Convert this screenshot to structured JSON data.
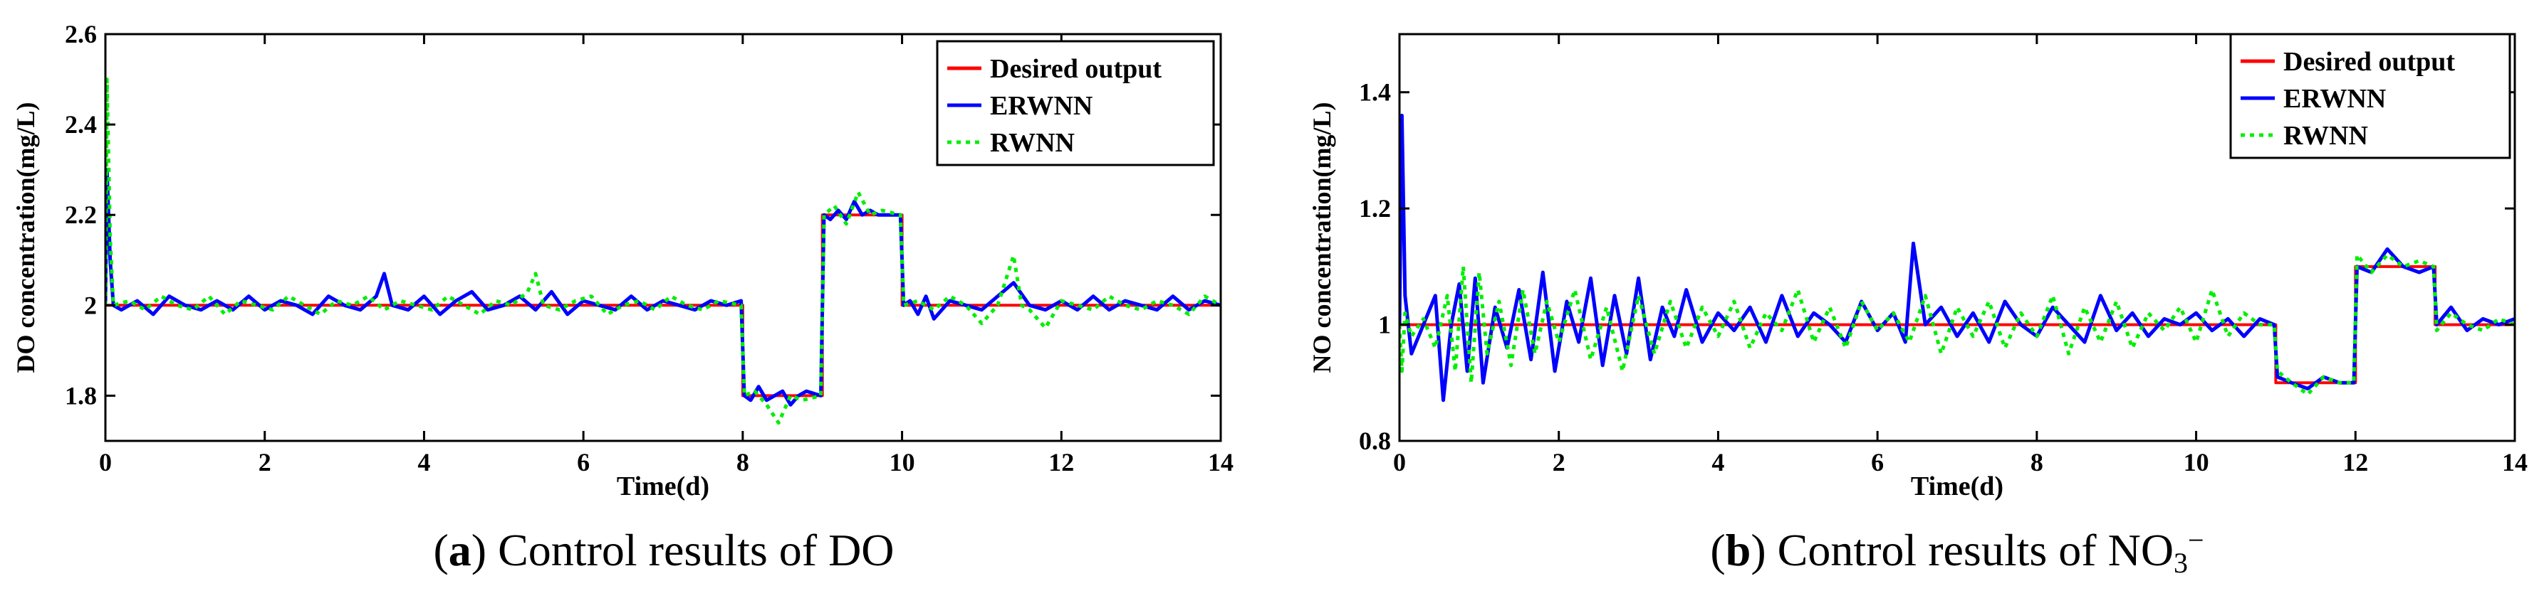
{
  "chart_data": [
    {
      "type": "line",
      "xlabel": "Time(d)",
      "ylabel": "DO concentration(mg/L)",
      "xlim": [
        0,
        14
      ],
      "ylim": [
        1.7,
        2.6
      ],
      "xticks": [
        0,
        2,
        4,
        6,
        8,
        10,
        12,
        14
      ],
      "xtick_labels": [
        "0",
        "2",
        "4",
        "6",
        "8",
        "10",
        "12",
        "14"
      ],
      "yticks": [
        1.8,
        2.0,
        2.2,
        2.4,
        2.6
      ],
      "ytick_labels": [
        "1.8",
        "2",
        "2.2",
        "2.4",
        "2.6"
      ],
      "grid": false,
      "legend": "top-right",
      "caption": {
        "letter": "a",
        "text": " Control results of DO"
      },
      "series": [
        {
          "name": "Desired output",
          "color": "#ff0000",
          "style": "solid",
          "x": [
            0,
            8,
            8,
            9,
            9,
            10,
            10,
            14
          ],
          "y": [
            2.0,
            2.0,
            1.8,
            1.8,
            2.2,
            2.2,
            2.0,
            2.0
          ]
        },
        {
          "name": "ERWNN",
          "color": "#0000ff",
          "style": "solid",
          "x": [
            0,
            0.02,
            0.06,
            0.1,
            0.2,
            0.4,
            0.6,
            0.8,
            1.0,
            1.2,
            1.4,
            1.6,
            1.8,
            2.0,
            2.2,
            2.4,
            2.6,
            2.8,
            3.0,
            3.2,
            3.4,
            3.5,
            3.6,
            3.8,
            4.0,
            4.2,
            4.4,
            4.6,
            4.8,
            5.0,
            5.2,
            5.4,
            5.6,
            5.8,
            6.0,
            6.2,
            6.4,
            6.6,
            6.8,
            7.0,
            7.2,
            7.4,
            7.6,
            7.8,
            7.98,
            8.02,
            8.1,
            8.2,
            8.3,
            8.4,
            8.5,
            8.6,
            8.7,
            8.8,
            8.98,
            9.02,
            9.1,
            9.2,
            9.3,
            9.4,
            9.5,
            9.6,
            9.7,
            9.8,
            9.98,
            10.02,
            10.1,
            10.2,
            10.3,
            10.4,
            10.6,
            10.8,
            11.0,
            11.2,
            11.4,
            11.6,
            11.8,
            12.0,
            12.2,
            12.4,
            12.6,
            12.8,
            13.0,
            13.2,
            13.4,
            13.6,
            13.8,
            14.0
          ],
          "y": [
            2.0,
            2.3,
            2.1,
            2.0,
            1.99,
            2.01,
            1.98,
            2.02,
            2.0,
            1.99,
            2.01,
            1.99,
            2.02,
            1.99,
            2.01,
            2.0,
            1.98,
            2.02,
            2.0,
            1.99,
            2.02,
            2.07,
            2.0,
            1.99,
            2.02,
            1.98,
            2.01,
            2.03,
            1.99,
            2.0,
            2.02,
            1.99,
            2.03,
            1.98,
            2.01,
            2.0,
            1.99,
            2.02,
            1.99,
            2.01,
            2.0,
            1.99,
            2.01,
            2.0,
            2.01,
            1.8,
            1.79,
            1.82,
            1.79,
            1.8,
            1.81,
            1.78,
            1.8,
            1.81,
            1.8,
            2.2,
            2.19,
            2.21,
            2.19,
            2.23,
            2.2,
            2.21,
            2.2,
            2.2,
            2.2,
            2.0,
            2.01,
            1.98,
            2.02,
            1.97,
            2.01,
            2.0,
            1.99,
            2.02,
            2.05,
            2.0,
            1.99,
            2.01,
            1.99,
            2.02,
            1.99,
            2.01,
            2.0,
            1.99,
            2.02,
            1.99,
            2.01,
            2.0
          ]
        },
        {
          "name": "RWNN",
          "color": "#00ee00",
          "style": "dotted",
          "x": [
            0,
            0.02,
            0.06,
            0.1,
            0.3,
            0.5,
            0.7,
            0.9,
            1.1,
            1.3,
            1.5,
            1.7,
            1.9,
            2.1,
            2.3,
            2.5,
            2.7,
            2.9,
            3.1,
            3.3,
            3.5,
            3.7,
            3.9,
            4.1,
            4.3,
            4.5,
            4.7,
            4.9,
            5.1,
            5.3,
            5.4,
            5.5,
            5.7,
            5.9,
            6.1,
            6.3,
            6.5,
            6.7,
            6.9,
            7.1,
            7.3,
            7.5,
            7.7,
            7.98,
            8.02,
            8.15,
            8.3,
            8.45,
            8.6,
            8.75,
            8.98,
            9.02,
            9.15,
            9.3,
            9.45,
            9.6,
            9.75,
            9.98,
            10.02,
            10.2,
            10.4,
            10.6,
            10.8,
            11.0,
            11.2,
            11.4,
            11.5,
            11.6,
            11.8,
            12.0,
            12.2,
            12.4,
            12.6,
            12.8,
            13.0,
            13.2,
            13.4,
            13.6,
            13.8,
            14.0
          ],
          "y": [
            2.0,
            2.5,
            2.15,
            2.0,
            2.01,
            1.99,
            2.02,
            2.0,
            1.99,
            2.02,
            1.98,
            2.01,
            2.0,
            1.99,
            2.02,
            2.0,
            1.98,
            2.01,
            2.0,
            2.02,
            1.99,
            2.01,
            2.0,
            1.99,
            2.02,
            2.0,
            1.98,
            2.01,
            2.0,
            2.03,
            2.07,
            2.0,
            1.99,
            2.01,
            2.02,
            1.98,
            2.0,
            2.01,
            1.99,
            2.02,
            2.0,
            1.99,
            2.01,
            2.0,
            1.8,
            1.81,
            1.78,
            1.74,
            1.8,
            1.79,
            1.8,
            2.2,
            2.22,
            2.18,
            2.25,
            2.2,
            2.21,
            2.2,
            2.0,
            2.01,
            1.99,
            2.02,
            2.0,
            1.96,
            2.0,
            2.11,
            2.0,
            1.99,
            1.95,
            2.01,
            2.0,
            1.99,
            2.02,
            2.0,
            1.99,
            2.01,
            2.0,
            1.98,
            2.02,
            2.0
          ]
        }
      ]
    },
    {
      "type": "line",
      "xlabel": "Time(d)",
      "ylabel": "NO concentration(mg/L)",
      "xlim": [
        0,
        14
      ],
      "ylim": [
        0.8,
        1.5
      ],
      "xticks": [
        0,
        2,
        4,
        6,
        8,
        10,
        12,
        14
      ],
      "xtick_labels": [
        "0",
        "2",
        "4",
        "6",
        "8",
        "10",
        "12",
        "14"
      ],
      "yticks": [
        0.8,
        1.0,
        1.2,
        1.4
      ],
      "ytick_labels": [
        "0.8",
        "1",
        "1.2",
        "1.4"
      ],
      "grid": false,
      "legend": "top-right",
      "caption": {
        "letter": "b",
        "text": " Control results of NO",
        "sub": "3",
        "sup": "−"
      },
      "series": [
        {
          "name": "Desired output",
          "color": "#ff0000",
          "style": "solid",
          "x": [
            0,
            11,
            11,
            12,
            12,
            13,
            13,
            14
          ],
          "y": [
            1.0,
            1.0,
            0.9,
            0.9,
            1.1,
            1.1,
            1.0,
            1.0
          ]
        },
        {
          "name": "ERWNN",
          "color": "#0000ff",
          "style": "solid",
          "x": [
            0,
            0.03,
            0.07,
            0.15,
            0.3,
            0.45,
            0.55,
            0.65,
            0.75,
            0.85,
            0.95,
            1.05,
            1.2,
            1.35,
            1.5,
            1.65,
            1.8,
            1.95,
            2.1,
            2.25,
            2.4,
            2.55,
            2.7,
            2.85,
            3.0,
            3.15,
            3.3,
            3.45,
            3.6,
            3.8,
            4.0,
            4.2,
            4.4,
            4.6,
            4.8,
            5.0,
            5.2,
            5.4,
            5.6,
            5.8,
            6.0,
            6.2,
            6.35,
            6.45,
            6.6,
            6.8,
            7.0,
            7.2,
            7.4,
            7.6,
            7.8,
            8.0,
            8.2,
            8.4,
            8.6,
            8.8,
            9.0,
            9.2,
            9.4,
            9.6,
            9.8,
            10.0,
            10.2,
            10.4,
            10.6,
            10.8,
            10.98,
            11.02,
            11.2,
            11.4,
            11.6,
            11.8,
            11.98,
            12.02,
            12.2,
            12.4,
            12.6,
            12.8,
            12.98,
            13.02,
            13.2,
            13.4,
            13.6,
            13.8,
            14.0
          ],
          "y": [
            1.0,
            1.36,
            1.05,
            0.95,
            1.0,
            1.05,
            0.87,
            1.0,
            1.07,
            0.92,
            1.08,
            0.9,
            1.03,
            0.96,
            1.06,
            0.94,
            1.09,
            0.92,
            1.04,
            0.97,
            1.08,
            0.93,
            1.05,
            0.95,
            1.08,
            0.94,
            1.03,
            0.98,
            1.06,
            0.97,
            1.02,
            0.99,
            1.03,
            0.97,
            1.05,
            0.98,
            1.02,
            1.0,
            0.97,
            1.04,
            0.99,
            1.02,
            0.97,
            1.14,
            1.0,
            1.03,
            0.98,
            1.02,
            0.97,
            1.04,
            1.0,
            0.98,
            1.03,
            1.0,
            0.97,
            1.05,
            0.99,
            1.02,
            0.98,
            1.01,
            1.0,
            1.02,
            0.99,
            1.01,
            0.98,
            1.01,
            1.0,
            0.91,
            0.9,
            0.89,
            0.91,
            0.9,
            0.9,
            1.1,
            1.09,
            1.13,
            1.1,
            1.09,
            1.1,
            1.0,
            1.03,
            0.99,
            1.01,
            1.0,
            1.01
          ]
        },
        {
          "name": "RWNN",
          "color": "#00ee00",
          "style": "dotted",
          "x": [
            0,
            0.03,
            0.07,
            0.15,
            0.3,
            0.45,
            0.6,
            0.7,
            0.8,
            0.9,
            1.0,
            1.1,
            1.25,
            1.4,
            1.55,
            1.7,
            1.85,
            2.0,
            2.2,
            2.4,
            2.6,
            2.8,
            3.0,
            3.2,
            3.4,
            3.6,
            3.8,
            4.0,
            4.2,
            4.4,
            4.6,
            4.8,
            5.0,
            5.2,
            5.4,
            5.6,
            5.8,
            6.0,
            6.2,
            6.4,
            6.6,
            6.8,
            7.0,
            7.2,
            7.4,
            7.6,
            7.8,
            8.0,
            8.2,
            8.4,
            8.6,
            8.8,
            9.0,
            9.2,
            9.4,
            9.6,
            9.8,
            10.0,
            10.2,
            10.4,
            10.6,
            10.8,
            10.98,
            11.02,
            11.2,
            11.4,
            11.6,
            11.8,
            11.98,
            12.02,
            12.2,
            12.4,
            12.6,
            12.8,
            12.98,
            13.02,
            13.2,
            13.4,
            13.6,
            13.8,
            14.0
          ],
          "y": [
            1.0,
            0.92,
            1.02,
            0.98,
            1.01,
            0.96,
            1.05,
            0.92,
            1.1,
            0.9,
            1.09,
            0.95,
            1.04,
            0.93,
            1.06,
            0.95,
            1.04,
            0.97,
            1.06,
            0.94,
            1.03,
            0.92,
            1.05,
            0.95,
            1.04,
            0.96,
            1.03,
            0.98,
            1.04,
            0.96,
            1.02,
            0.99,
            1.06,
            0.97,
            1.03,
            0.96,
            1.04,
            0.99,
            1.02,
            0.97,
            1.05,
            0.95,
            1.03,
            0.98,
            1.04,
            0.96,
            1.02,
            0.98,
            1.05,
            0.95,
            1.03,
            0.97,
            1.04,
            0.96,
            1.02,
            0.99,
            1.03,
            0.97,
            1.06,
            0.98,
            1.02,
            1.0,
            1.0,
            0.92,
            0.9,
            0.88,
            0.91,
            0.9,
            0.9,
            1.12,
            1.09,
            1.12,
            1.1,
            1.11,
            1.1,
            0.99,
            1.02,
            1.0,
            0.99,
            1.01,
            1.0
          ]
        }
      ]
    }
  ]
}
